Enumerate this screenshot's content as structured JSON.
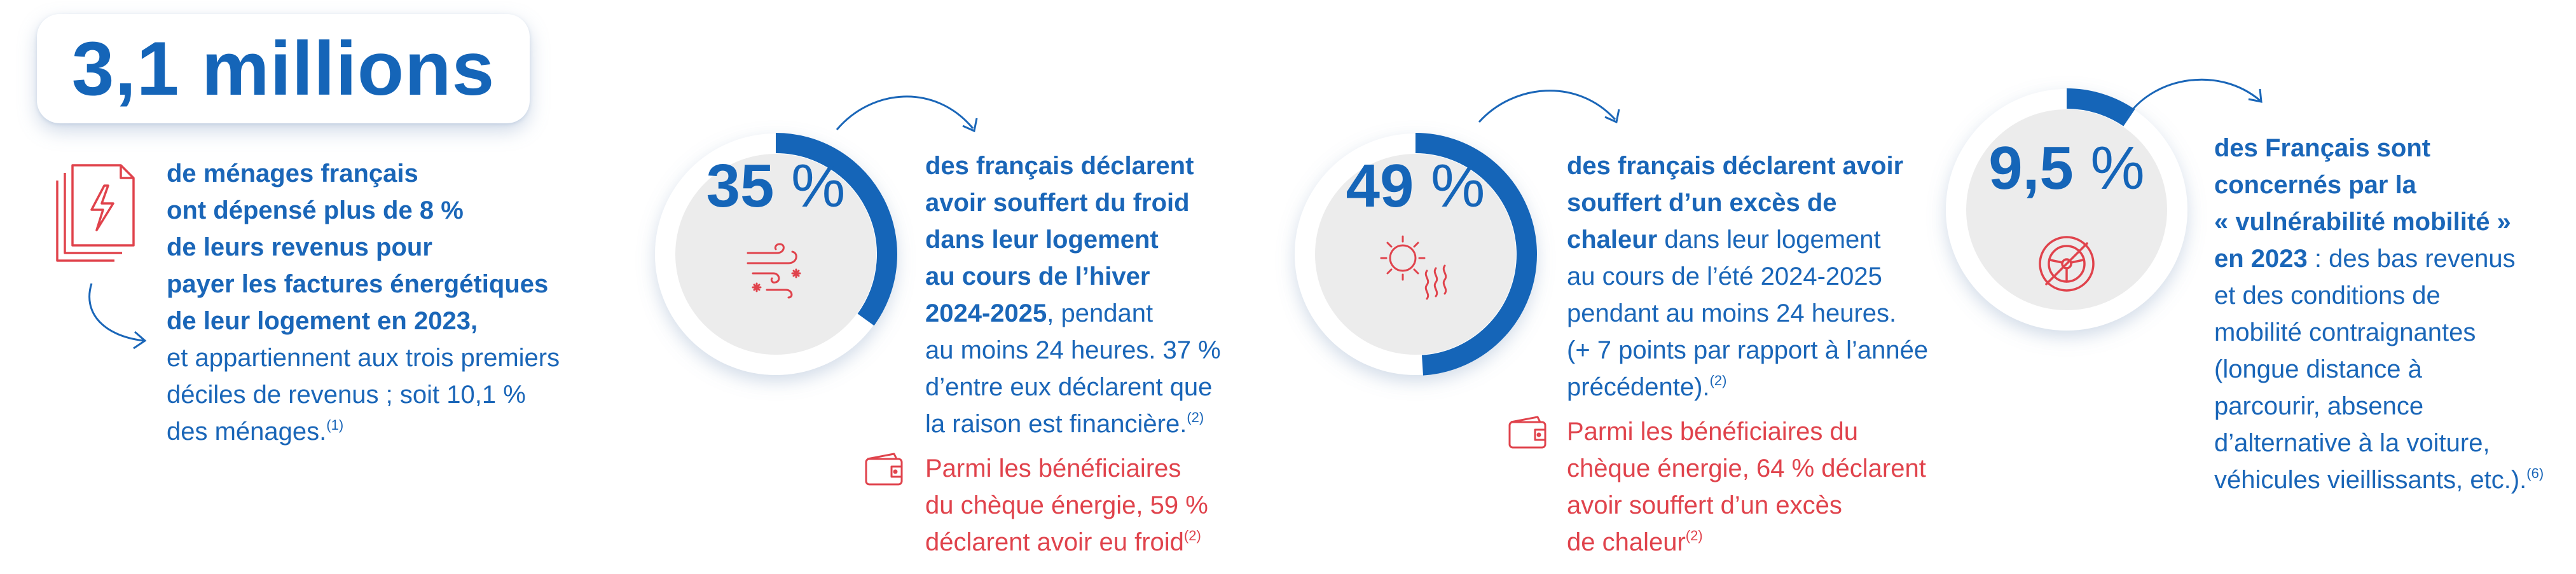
{
  "headline": "3,1 millions",
  "block1": {
    "bold_lines": [
      "de ménages français",
      "ont dépensé plus de 8 %",
      "de leurs revenus pour",
      "payer les factures énergétiques",
      "de leur logement en 2023,"
    ],
    "normal_lines": [
      "et appartiennent aux trois premiers",
      "déciles de revenus ; soit 10,1 %",
      "des ménages."
    ],
    "note": "(1)"
  },
  "stat_cold": {
    "value": "35",
    "unit": "%",
    "fill_percent": 35,
    "icon": "wind-snow-icon",
    "bold_lines": [
      "des français déclarent",
      "avoir souffert du froid",
      "dans leur logement",
      "au cours de l’hiver",
      "2024-2025"
    ],
    "tail_first": ", pendant",
    "normal_lines": [
      "au moins 24 heures. 37 %",
      "d’entre eux déclarent que",
      "la raison est financière."
    ],
    "note": "(2)",
    "red_lines": [
      "Parmi les bénéficiaires",
      "du chèque énergie, 59 %",
      "déclarent avoir eu froid"
    ],
    "red_note": "(2)"
  },
  "stat_heat": {
    "value": "49",
    "unit": "%",
    "fill_percent": 49,
    "icon": "sun-heat-icon",
    "bold_lines": [
      "des français déclarent avoir",
      "souffert d’un excès de",
      "chaleur"
    ],
    "tail_first": " dans leur logement",
    "normal_lines": [
      "au cours de l’été 2024-2025",
      "pendant au moins 24 heures.",
      "(+ 7 points par rapport à l’année",
      "précédente)."
    ],
    "note": "(2)",
    "red_lines": [
      "Parmi les bénéficiaires du",
      "chèque énergie, 64 % déclarent",
      "avoir souffert d’un excès",
      "de chaleur"
    ],
    "red_note": "(2)"
  },
  "stat_mobility": {
    "value": "9,5",
    "unit": "%",
    "fill_percent": 9.5,
    "icon": "no-steering-wheel-icon",
    "bold_lines": [
      "des Français sont",
      "concernés par la",
      "« vulnérabilité mobilité »",
      "en 2023"
    ],
    "tail_first": " : des bas revenus",
    "normal_lines": [
      "et des conditions de",
      "mobilité contraignantes",
      "(longue distance à",
      "parcourir, absence",
      "d’alternative à la voiture,",
      "véhicules vieillissants, etc.)."
    ],
    "note": "(6)"
  },
  "colors": {
    "blue": "#1565b8",
    "red": "#e0434c",
    "ring_track": "#ececec"
  }
}
